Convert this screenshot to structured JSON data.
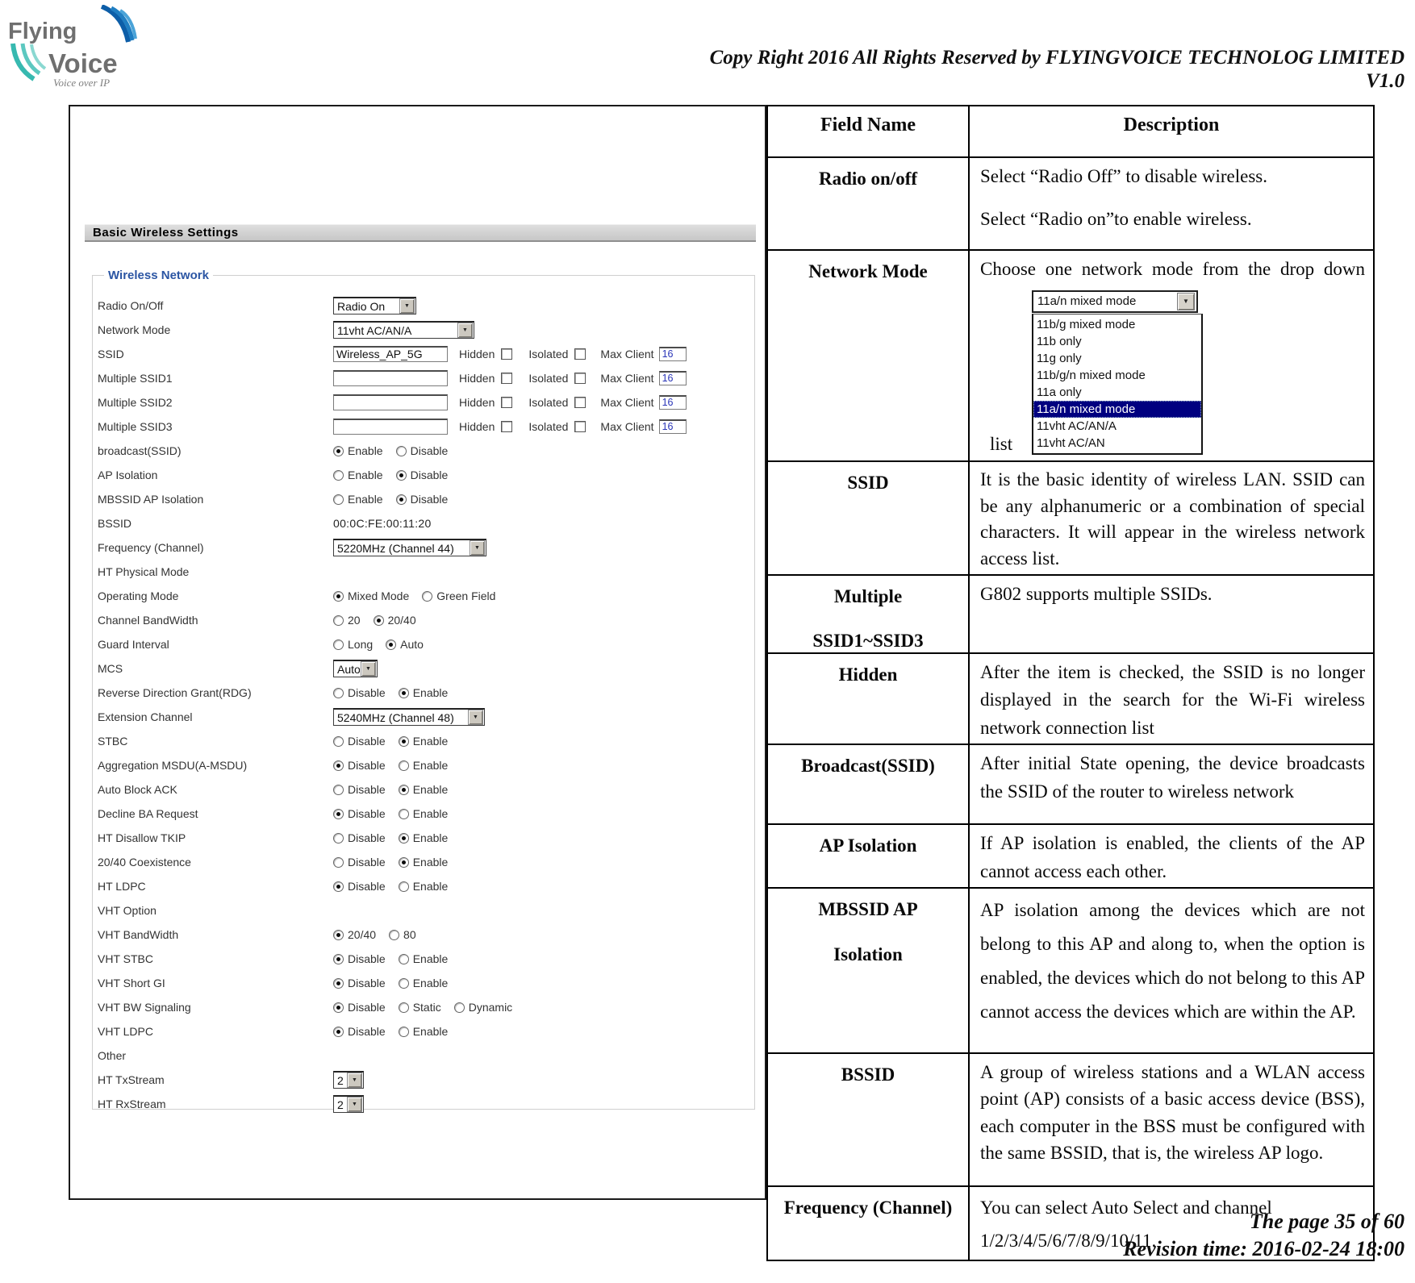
{
  "header": {
    "logo": {
      "word1": "Flying",
      "word2": "Voice",
      "tagline": "Voice over IP"
    },
    "copyright": "Copy Right 2016 All Rights Reserved by FLYINGVOICE TECHNOLOG LIMITED",
    "version": "V1.0"
  },
  "icons": {
    "dropdown_arrow": "▼"
  },
  "panel": {
    "title": "Basic Wireless Settings",
    "legend": "Wireless Network",
    "ssid_extras": {
      "hidden": "Hidden",
      "isolated": "Isolated",
      "max_client": "Max Client"
    },
    "rows": [
      {
        "type": "select",
        "label": "Radio On/Off",
        "value": "Radio On"
      },
      {
        "type": "select",
        "label": "Network Mode",
        "value": "11vht AC/AN/A"
      },
      {
        "type": "ssid",
        "label": "SSID",
        "value": "Wireless_AP_5G",
        "max": "16"
      },
      {
        "type": "ssid",
        "label": "Multiple SSID1",
        "value": "",
        "max": "16"
      },
      {
        "type": "ssid",
        "label": "Multiple SSID2",
        "value": "",
        "max": "16"
      },
      {
        "type": "ssid",
        "label": "Multiple SSID3",
        "value": "",
        "max": "16"
      },
      {
        "type": "radio",
        "label": "broadcast(SSID)",
        "options": [
          {
            "t": "Enable",
            "s": true
          },
          {
            "t": "Disable",
            "s": false
          }
        ]
      },
      {
        "type": "radio",
        "label": "AP Isolation",
        "options": [
          {
            "t": "Enable",
            "s": false
          },
          {
            "t": "Disable",
            "s": true
          }
        ]
      },
      {
        "type": "radio",
        "label": "MBSSID AP Isolation",
        "options": [
          {
            "t": "Enable",
            "s": false
          },
          {
            "t": "Disable",
            "s": true
          }
        ]
      },
      {
        "type": "static",
        "label": "BSSID",
        "value": "00:0C:FE:00:11:20"
      },
      {
        "type": "select",
        "label": "Frequency (Channel)",
        "value": "5220MHz (Channel 44)"
      },
      {
        "type": "section",
        "label": "HT Physical Mode"
      },
      {
        "type": "radio",
        "label": "Operating Mode",
        "options": [
          {
            "t": "Mixed Mode",
            "s": true
          },
          {
            "t": "Green Field",
            "s": false
          }
        ]
      },
      {
        "type": "radio",
        "label": "Channel BandWidth",
        "options": [
          {
            "t": "20",
            "s": false
          },
          {
            "t": "20/40",
            "s": true
          }
        ]
      },
      {
        "type": "radio",
        "label": "Guard Interval",
        "options": [
          {
            "t": "Long",
            "s": false
          },
          {
            "t": "Auto",
            "s": true
          }
        ]
      },
      {
        "type": "select",
        "label": "MCS",
        "value": "Auto"
      },
      {
        "type": "radio",
        "label": "Reverse Direction Grant(RDG)",
        "options": [
          {
            "t": "Disable",
            "s": false
          },
          {
            "t": "Enable",
            "s": true
          }
        ]
      },
      {
        "type": "select",
        "label": "Extension Channel",
        "value": "5240MHz (Channel 48)"
      },
      {
        "type": "radio",
        "label": "STBC",
        "options": [
          {
            "t": "Disable",
            "s": false
          },
          {
            "t": "Enable",
            "s": true
          }
        ]
      },
      {
        "type": "radio",
        "label": "Aggregation MSDU(A-MSDU)",
        "options": [
          {
            "t": "Disable",
            "s": true
          },
          {
            "t": "Enable",
            "s": false
          }
        ]
      },
      {
        "type": "radio",
        "label": "Auto Block ACK",
        "options": [
          {
            "t": "Disable",
            "s": false
          },
          {
            "t": "Enable",
            "s": true
          }
        ]
      },
      {
        "type": "radio",
        "label": "Decline BA Request",
        "options": [
          {
            "t": "Disable",
            "s": true
          },
          {
            "t": "Enable",
            "s": false
          }
        ]
      },
      {
        "type": "radio",
        "label": "HT Disallow TKIP",
        "options": [
          {
            "t": "Disable",
            "s": false
          },
          {
            "t": "Enable",
            "s": true
          }
        ]
      },
      {
        "type": "radio",
        "label": "20/40 Coexistence",
        "options": [
          {
            "t": "Disable",
            "s": false
          },
          {
            "t": "Enable",
            "s": true
          }
        ]
      },
      {
        "type": "radio",
        "label": "HT LDPC",
        "options": [
          {
            "t": "Disable",
            "s": true
          },
          {
            "t": "Enable",
            "s": false
          }
        ]
      },
      {
        "type": "section",
        "label": "VHT Option"
      },
      {
        "type": "radio",
        "label": "VHT BandWidth",
        "options": [
          {
            "t": "20/40",
            "s": true
          },
          {
            "t": "80",
            "s": false
          }
        ]
      },
      {
        "type": "radio",
        "label": "VHT STBC",
        "options": [
          {
            "t": "Disable",
            "s": true
          },
          {
            "t": "Enable",
            "s": false
          }
        ]
      },
      {
        "type": "radio",
        "label": "VHT Short GI",
        "options": [
          {
            "t": "Disable",
            "s": true
          },
          {
            "t": "Enable",
            "s": false
          }
        ]
      },
      {
        "type": "radio",
        "label": "VHT BW Signaling",
        "options": [
          {
            "t": "Disable",
            "s": true
          },
          {
            "t": "Static",
            "s": false
          },
          {
            "t": "Dynamic",
            "s": false
          }
        ]
      },
      {
        "type": "radio",
        "label": "VHT LDPC",
        "options": [
          {
            "t": "Disable",
            "s": true
          },
          {
            "t": "Enable",
            "s": false
          }
        ]
      },
      {
        "type": "section",
        "label": "Other"
      },
      {
        "type": "select",
        "label": "HT TxStream",
        "value": "2"
      },
      {
        "type": "select",
        "label": "HT RxStream",
        "value": "2"
      }
    ]
  },
  "table": {
    "headers": [
      "Field Name",
      "Description"
    ],
    "rows": [
      {
        "name": [
          "Radio on/off"
        ],
        "paras": [
          "Select “Radio Off” to disable wireless.",
          "Select “Radio on”to enable wireless."
        ]
      },
      {
        "name": [
          "Network Mode"
        ],
        "paras": [
          "Choose one network mode from the drop down"
        ],
        "list_word": "list",
        "dropdown": {
          "selected": "11a/n mixed mode",
          "items": [
            "11b/g mixed mode",
            "11b only",
            "11g only",
            "11b/g/n mixed mode",
            "11a only",
            "11a/n mixed mode",
            "11vht AC/AN/A",
            "11vht AC/AN"
          ],
          "highlight_index": 5
        }
      },
      {
        "name": [
          "SSID"
        ],
        "paras": [
          "It is the basic identity of wireless LAN. SSID can be any alphanumeric or a combination of special characters. It will appear in the wireless network access list."
        ]
      },
      {
        "name": [
          "Multiple",
          "SSID1~SSID3"
        ],
        "paras": [
          "G802 supports multiple SSIDs."
        ]
      },
      {
        "name": [
          "Hidden"
        ],
        "paras": [
          "After the item is checked, the SSID is no longer displayed in the search for the Wi-Fi wireless network connection list"
        ]
      },
      {
        "name": [
          "Broadcast(SSID)"
        ],
        "paras": [
          "After initial State opening, the device broadcasts the SSID of the router to wireless network"
        ]
      },
      {
        "name": [
          "AP Isolation"
        ],
        "paras": [
          "If AP isolation is enabled, the clients of the AP cannot access each other."
        ]
      },
      {
        "name": [
          "MBSSID AP",
          "Isolation"
        ],
        "paras": [
          "AP isolation among the devices which are not belong to this AP and along to, when the option is enabled, the devices which do not belong to this AP cannot access the devices which are within the AP."
        ]
      },
      {
        "name": [
          "BSSID"
        ],
        "paras": [
          "A group of wireless stations and a WLAN access point (AP) consists of a basic access device (BSS), each computer in the BSS must be configured with the same BSSID, that is, the wireless AP logo."
        ]
      },
      {
        "name": [
          "Frequency (Channel)"
        ],
        "paras": [
          "You can select Auto Select and channel 1/2/3/4/5/6/7/8/9/10/11."
        ]
      }
    ]
  },
  "footer": {
    "page": "The page 35 of 60",
    "revision": "Revision time: 2016-02-24 18:00"
  }
}
